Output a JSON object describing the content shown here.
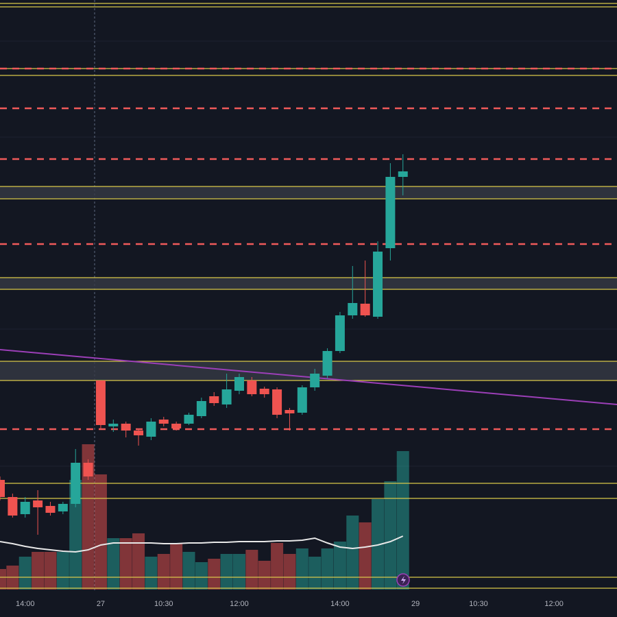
{
  "chart_data": {
    "type": "candlestick",
    "xlim": [
      0,
      49
    ],
    "xticks": [
      {
        "value": 2,
        "label": "14:00"
      },
      {
        "value": 8,
        "label": "27"
      },
      {
        "value": 13,
        "label": "10:30"
      },
      {
        "value": 19,
        "label": "12:00"
      },
      {
        "value": 27,
        "label": "14:00"
      },
      {
        "value": 33,
        "label": "29"
      },
      {
        "value": 38,
        "label": "10:30"
      },
      {
        "value": 44,
        "label": "12:00"
      }
    ],
    "ylim": [
      0,
      900
    ],
    "up_color": "#26a69a",
    "down_color": "#ef5350",
    "open": [
      200,
      175,
      150,
      170,
      162,
      154,
      165,
      225,
      345,
      278,
      282,
      272,
      263,
      288,
      282,
      282,
      293,
      322,
      310,
      330,
      345,
      333,
      332,
      302,
      298,
      335,
      352,
      388,
      440,
      457,
      438,
      538,
      642
    ],
    "high": [
      205,
      180,
      175,
      185,
      168,
      168,
      245,
      230,
      345,
      288,
      285,
      275,
      290,
      292,
      285,
      298,
      320,
      328,
      355,
      355,
      350,
      336,
      335,
      305,
      338,
      362,
      392,
      445,
      512,
      520,
      548,
      662,
      675
    ],
    "low": [
      170,
      145,
      145,
      120,
      148,
      150,
      160,
      200,
      275,
      270,
      262,
      250,
      258,
      278,
      272,
      280,
      290,
      308,
      305,
      325,
      322,
      320,
      290,
      272,
      295,
      330,
      348,
      385,
      435,
      438,
      435,
      520,
      615
    ],
    "close": [
      175,
      148,
      168,
      160,
      152,
      165,
      225,
      205,
      280,
      282,
      272,
      265,
      285,
      282,
      275,
      295,
      315,
      312,
      332,
      350,
      325,
      325,
      295,
      297,
      335,
      355,
      388,
      440,
      458,
      440,
      533,
      642,
      650
    ],
    "volume": [
      30,
      35,
      48,
      55,
      55,
      55,
      160,
      212,
      168,
      75,
      75,
      82,
      48,
      52,
      68,
      55,
      40,
      45,
      52,
      52,
      58,
      42,
      68,
      52,
      60,
      48,
      60,
      70,
      108,
      98,
      132,
      158,
      202
    ],
    "volume_ma": [
      70,
      67,
      63,
      60,
      58,
      56,
      55,
      58,
      65,
      68,
      68,
      68,
      68,
      67,
      67,
      68,
      68,
      69,
      69,
      70,
      70,
      70,
      71,
      71,
      72,
      75,
      68,
      62,
      60,
      62,
      65,
      70,
      78
    ],
    "vlim": [
      0,
      250
    ],
    "levels": [
      895,
      890,
      800,
      790,
      628,
      610,
      495,
      478,
      373,
      345,
      195,
      173,
      58,
      42
    ],
    "level_color": "#d9c84a",
    "zones": [
      [
        628,
        610
      ],
      [
        495,
        478
      ],
      [
        373,
        345
      ]
    ],
    "dashed_levels": [
      800,
      742,
      668,
      544,
      274
    ],
    "dashed_color": "#f05a5a",
    "trendline": {
      "x": [
        0,
        49
      ],
      "y": [
        390,
        310
      ],
      "color": "#9c3fb8"
    },
    "ma_color": "#e8e8e8"
  }
}
